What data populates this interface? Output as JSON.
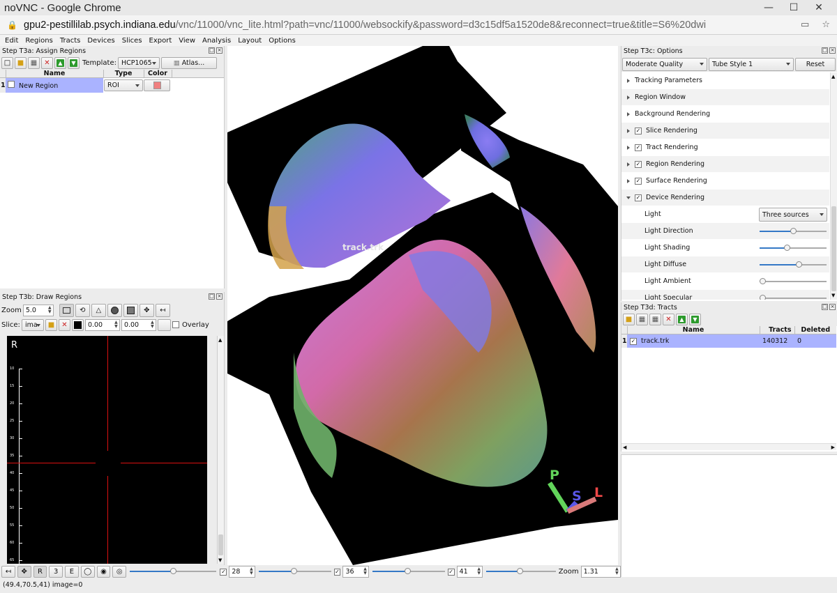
{
  "window": {
    "title": "noVNC - Google Chrome",
    "url_host": "gpu2-pestillilab.psych.indiana.edu",
    "url_path": "/vnc/11000/vnc_lite.html?path=vnc/11000/websockify&password=d3c15df5a1520de8&reconnect=true&title=S6%20dwi"
  },
  "menu": [
    "Edit",
    "Regions",
    "Tracts",
    "Devices",
    "Slices",
    "Export",
    "View",
    "Analysis",
    "Layout",
    "Options"
  ],
  "assign_regions": {
    "title": "Step T3a: Assign Regions",
    "template_label": "Template:",
    "template_value": "HCP1065",
    "atlas_button": "Atlas...",
    "columns": [
      "Name",
      "Type",
      "Color"
    ],
    "rows": [
      {
        "index": "1",
        "name": "New Region",
        "type": "ROI",
        "color": "#f08080"
      }
    ]
  },
  "draw_regions": {
    "title": "Step T3b: Draw Regions",
    "zoom_label": "Zoom",
    "zoom_value": "5.0",
    "slice_label": "Slice:",
    "slice_value": "ima",
    "value1": "0.00",
    "value2": "0.00",
    "overlay_label": "Overlay",
    "orientation_label": "R",
    "ruler_ticks": [
      "10",
      "15",
      "20",
      "25",
      "30",
      "35",
      "40",
      "45",
      "50",
      "55",
      "60",
      "65"
    ]
  },
  "viewer": {
    "tract_label": "track.trk",
    "axis_p": "P",
    "axis_s": "S",
    "axis_l": "L",
    "colors": {
      "p": "#62d45a",
      "s": "#5a57e8",
      "l": "#f04848"
    }
  },
  "bottom_bar": {
    "buttons": [
      "R",
      "3",
      "E"
    ],
    "slice1": "28",
    "slice2": "36",
    "slice3": "41",
    "zoom_label": "Zoom",
    "zoom_value": "1.31",
    "slider_main": 0.5,
    "slider1": 0.48,
    "slider2": 0.48,
    "slider3": 0.48
  },
  "options": {
    "title": "Step T3c: Options",
    "quality": "Moderate Quality",
    "tube_style": "Tube Style 1",
    "reset": "Reset",
    "items": [
      {
        "label": "Tracking Parameters",
        "check": false,
        "expanded": false
      },
      {
        "label": "Region Window",
        "check": false,
        "expanded": false
      },
      {
        "label": "Background Rendering",
        "check": false,
        "expanded": false
      },
      {
        "label": "Slice Rendering",
        "check": true,
        "expanded": false
      },
      {
        "label": "Tract Rendering",
        "check": true,
        "expanded": false
      },
      {
        "label": "Region Rendering",
        "check": true,
        "expanded": false
      },
      {
        "label": "Surface Rendering",
        "check": true,
        "expanded": false
      },
      {
        "label": "Device Rendering",
        "check": true,
        "expanded": true
      }
    ],
    "sub_items": [
      {
        "label": "Light",
        "control": "combo",
        "value": "Three sources"
      },
      {
        "label": "Light Direction",
        "control": "slider",
        "level": 0.5
      },
      {
        "label": "Light Shading",
        "control": "slider",
        "level": 0.4
      },
      {
        "label": "Light Diffuse",
        "control": "slider",
        "level": 0.6
      },
      {
        "label": "Light Ambient",
        "control": "slider",
        "level": 0.0
      },
      {
        "label": "Light Specular",
        "control": "slider",
        "level": 0.0
      }
    ]
  },
  "tracts": {
    "title": "Step T3d: Tracts",
    "columns": [
      "Name",
      "Tracts",
      "Deleted"
    ],
    "rows": [
      {
        "index": "1",
        "name": "track.trk",
        "tracts": "140312",
        "deleted": "0"
      }
    ]
  },
  "status": "(49.4,70.5,41) image=0"
}
